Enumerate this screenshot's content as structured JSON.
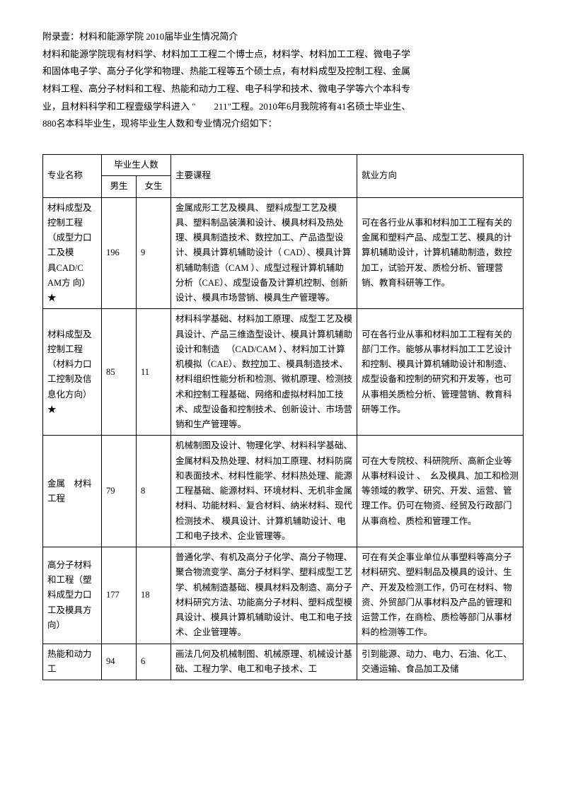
{
  "intro": {
    "lines": [
      "附录壹：材料和能源学院 2010届毕业生情况简介",
      "材料和能源学院现有材料学、材料加工工程二个博士点，材料学、材料加工工程、微电子学",
      "和固体电子学、高分子化学和物理、热能工程等五个硕士点，有材料成型及控制工程、金属",
      "材料工程、高分子材料和工程、热能和动力工程、电子科学和技术、微电子学等六个本科专",
      "业，且材料科学和工程壹级学科进入 \"　　211\"工程。2010年6月我院将有41名硕士毕业生、",
      "880名本科毕业生，现将毕业生人数和专业情况介绍如下："
    ]
  },
  "table": {
    "headers": {
      "major": "专业名称",
      "grad_count": "毕业生人数",
      "male": "男生",
      "female": "女生",
      "courses": "主要课程",
      "career": "就业方向"
    },
    "rows": [
      {
        "major": "材料成型及控制工程（成型力口工及模　　具CAD/C AM方 向）★",
        "male": "196",
        "female": "9",
        "courses": "金属成形工艺及模具、 塑料成型工艺及模具、塑料制品装潢和设计、模具材料及热处理、模具制造技术、数控加工、产品造型设计、模具计算机辅助设计（ CAD）、模具计算机辅助制造（CAM ）、成型过程计算机辅助分析（CAE）、成型设备及计算机控制、创新设计、模具市场营销、模具生产管理等。",
        "career": "可在各行业从事和材料加工工程有关的金属和塑料产品、成型工艺、模具的计算机辅助设计，计算机辅助制造，数控加工，试验开发、质检分析、管理营销、教育科研等工作。"
      },
      {
        "major": "材料成型及控制工程　（材料力口工控制及信息化方向）★",
        "male": "85",
        "female": "11",
        "courses": "材料科学基础、材料加工原理、成型工艺及模具设计、产品三维造型设计、模具计算机辅助设计和制造 　（CAD/CAM ）、材料加工计算机模拟（CAE）、数控加工、模具制造技术、材料组织性能分析和检测、微机原理、检测技术和控制工程基础、网络和虚拟材料加工技术、成型设备和控制技术、创新设计、市场营销和生产管理等。",
        "career": "可在各行业从事和材料加工工程有关的部门工作。能够从事材料加工工艺设计和控制、模具计算机辅助设计和制造、成型设备和控制的研究和开发等，也可从事相关质检分析、管理营销、教育科研等工作。"
      },
      {
        "major": "金属　材料工程",
        "male": "79",
        "female": "8",
        "courses": "机械制图及设计、物理化学、材料科学基础、金属材料及热处理、材料加工原理、材料防腐和表面技术、材料性能学、材料热处理、能源工程基础、能源材料、环境材料、无机非金属材料、功能材料、复合材料、纳米材料、现代检测技术、\n模具设计、计算机辅助设计、电工和电子技术、企业管理等。",
        "career": "可在大专院校、科研院所、高新企业等从事材料设计 、　幺及模具、加工和检测等领域的教学、研究、开发、运营、管理工作。仍可在物资、经贸及行政部门从事商检、质检和管理工作。"
      },
      {
        "major": "高分子材料和工程（塑料成型力口工及模具方向）",
        "male": "177",
        "female": "18",
        "courses": "普通化学、有机及高分子化学、高分子物理、聚合物流变学、高分子材料学、塑料成型工艺学、机械制造基础、模具材料及制造、高分子材料研究方法、功能高分子材料、塑料成型模具设计、模具计算机辅助设计、电工和电子技术、企业管理等。",
        "career": "可在有关企事业单位从事塑料等高分子材料研究、塑料制品及模具的设计、生产、开发及检测工作，仍可在材料、物资、外贸部门从事材料及产品的管理和运营工作，在商检、质检等部门从事材料的检测等工作。"
      },
      {
        "major": "热能和动力工",
        "male": "94",
        "female": "6",
        "courses": "画法几何及机械制图、机械原理、机械设计基础、工程力学、电工和电子技术、工",
        "career": "引到能源、动力、电力、石油、化工、交通运输、食品加工及储"
      }
    ]
  }
}
